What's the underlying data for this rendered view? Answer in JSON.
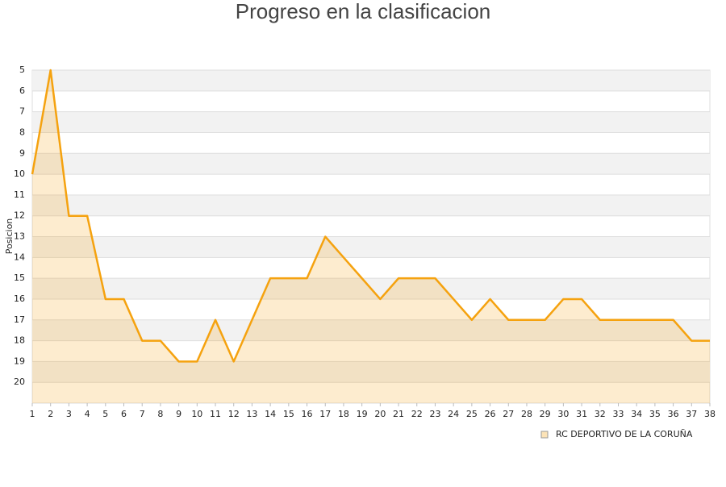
{
  "chart_data": {
    "type": "area",
    "title": "Progreso en la clasificacion",
    "y_label": "Posicion",
    "x": [
      1,
      2,
      3,
      4,
      5,
      6,
      7,
      8,
      9,
      10,
      11,
      12,
      13,
      14,
      15,
      16,
      17,
      18,
      19,
      20,
      21,
      22,
      23,
      24,
      25,
      26,
      27,
      28,
      29,
      30,
      31,
      32,
      33,
      34,
      35,
      36,
      37,
      38
    ],
    "series": [
      {
        "name": "RC DEPORTIVO DE LA CORUÑA",
        "color": "#f5a20f",
        "values": [
          10,
          5,
          12,
          12,
          16,
          16,
          18,
          18,
          19,
          19,
          17,
          19,
          17,
          15,
          15,
          15,
          13,
          14,
          15,
          16,
          15,
          15,
          15,
          16,
          17,
          16,
          17,
          17,
          17,
          16,
          16,
          17,
          17,
          17,
          17,
          17,
          18,
          18
        ]
      }
    ],
    "xlim": [
      1,
      38
    ],
    "xticks": [
      1,
      2,
      3,
      4,
      5,
      6,
      7,
      8,
      9,
      10,
      11,
      12,
      13,
      14,
      15,
      16,
      17,
      18,
      19,
      20,
      21,
      22,
      23,
      24,
      25,
      26,
      27,
      28,
      29,
      30,
      31,
      32,
      33,
      34,
      35,
      36,
      37,
      38
    ],
    "ylim": [
      21,
      5
    ],
    "yticks": [
      5,
      6,
      7,
      8,
      9,
      10,
      11,
      12,
      13,
      14,
      15,
      16,
      17,
      18,
      19,
      20
    ],
    "grid": true
  }
}
